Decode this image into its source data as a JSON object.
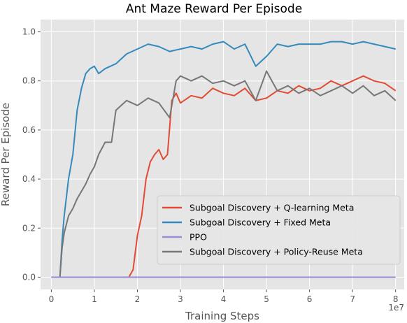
{
  "chart_data": {
    "type": "line",
    "title": "Ant Maze Reward Per Episode",
    "xlabel": "Training Steps",
    "ylabel": "Reward Per Episode",
    "x_multiplier_label": "1e7",
    "xlim": [
      -0.25,
      8.2
    ],
    "ylim": [
      -0.05,
      1.05
    ],
    "xticks": [
      0,
      1,
      2,
      3,
      4,
      5,
      6,
      7,
      8
    ],
    "yticks": [
      0.0,
      0.2,
      0.4,
      0.6,
      0.8,
      1.0
    ],
    "ytick_labels": [
      "0.0",
      "0.2",
      "0.4",
      "0.6",
      "0.8",
      "1.0"
    ],
    "grid": true,
    "background": "#e5e5e5",
    "legend_position": "lower-right",
    "series": [
      {
        "name": "Subgoal Discovery + Q-learning Meta",
        "color": "#e24a33",
        "x": [
          0,
          1.8,
          1.9,
          2.0,
          2.1,
          2.2,
          2.3,
          2.4,
          2.5,
          2.6,
          2.7,
          2.8,
          2.9,
          3.0,
          3.25,
          3.5,
          3.75,
          4.0,
          4.25,
          4.5,
          4.75,
          5.0,
          5.25,
          5.5,
          5.75,
          6.0,
          6.25,
          6.5,
          6.75,
          7.0,
          7.25,
          7.5,
          7.75,
          8.0
        ],
        "values": [
          0.0,
          0.0,
          0.03,
          0.17,
          0.25,
          0.4,
          0.47,
          0.5,
          0.52,
          0.48,
          0.5,
          0.72,
          0.75,
          0.71,
          0.74,
          0.73,
          0.77,
          0.75,
          0.74,
          0.77,
          0.72,
          0.73,
          0.76,
          0.75,
          0.78,
          0.76,
          0.77,
          0.8,
          0.78,
          0.8,
          0.82,
          0.8,
          0.79,
          0.76
        ]
      },
      {
        "name": "Subgoal Discovery + Fixed Meta",
        "color": "#348abd",
        "x": [
          0,
          0.2,
          0.25,
          0.3,
          0.4,
          0.5,
          0.6,
          0.7,
          0.8,
          0.9,
          1.0,
          1.1,
          1.25,
          1.5,
          1.75,
          2.0,
          2.25,
          2.5,
          2.75,
          3.0,
          3.25,
          3.5,
          3.75,
          4.0,
          4.25,
          4.5,
          4.75,
          5.0,
          5.25,
          5.5,
          5.75,
          6.0,
          6.25,
          6.5,
          6.75,
          7.0,
          7.25,
          7.5,
          7.75,
          8.0
        ],
        "values": [
          0.0,
          0.0,
          0.15,
          0.25,
          0.4,
          0.5,
          0.68,
          0.77,
          0.83,
          0.85,
          0.86,
          0.83,
          0.85,
          0.87,
          0.91,
          0.93,
          0.95,
          0.94,
          0.92,
          0.93,
          0.94,
          0.93,
          0.95,
          0.96,
          0.93,
          0.95,
          0.86,
          0.9,
          0.95,
          0.94,
          0.95,
          0.95,
          0.95,
          0.96,
          0.96,
          0.95,
          0.96,
          0.95,
          0.94,
          0.93
        ]
      },
      {
        "name": "PPO",
        "color": "#988ed5",
        "x": [
          0,
          8.0
        ],
        "values": [
          0.0,
          0.0
        ]
      },
      {
        "name": "Subgoal Discovery + Policy-Reuse Meta",
        "color": "#777777",
        "x": [
          0,
          0.2,
          0.25,
          0.3,
          0.4,
          0.5,
          0.6,
          0.7,
          0.8,
          0.9,
          1.0,
          1.1,
          1.25,
          1.4,
          1.5,
          1.75,
          2.0,
          2.25,
          2.5,
          2.75,
          2.9,
          3.0,
          3.25,
          3.5,
          3.75,
          4.0,
          4.25,
          4.5,
          4.75,
          5.0,
          5.25,
          5.5,
          5.75,
          6.0,
          6.25,
          6.5,
          6.75,
          7.0,
          7.25,
          7.5,
          7.75,
          8.0
        ],
        "values": [
          0.0,
          0.0,
          0.12,
          0.18,
          0.25,
          0.28,
          0.32,
          0.35,
          0.38,
          0.42,
          0.45,
          0.5,
          0.55,
          0.55,
          0.68,
          0.72,
          0.7,
          0.73,
          0.71,
          0.65,
          0.8,
          0.82,
          0.8,
          0.82,
          0.79,
          0.8,
          0.78,
          0.8,
          0.72,
          0.84,
          0.76,
          0.78,
          0.75,
          0.77,
          0.74,
          0.76,
          0.78,
          0.75,
          0.78,
          0.74,
          0.76,
          0.72
        ]
      }
    ]
  }
}
